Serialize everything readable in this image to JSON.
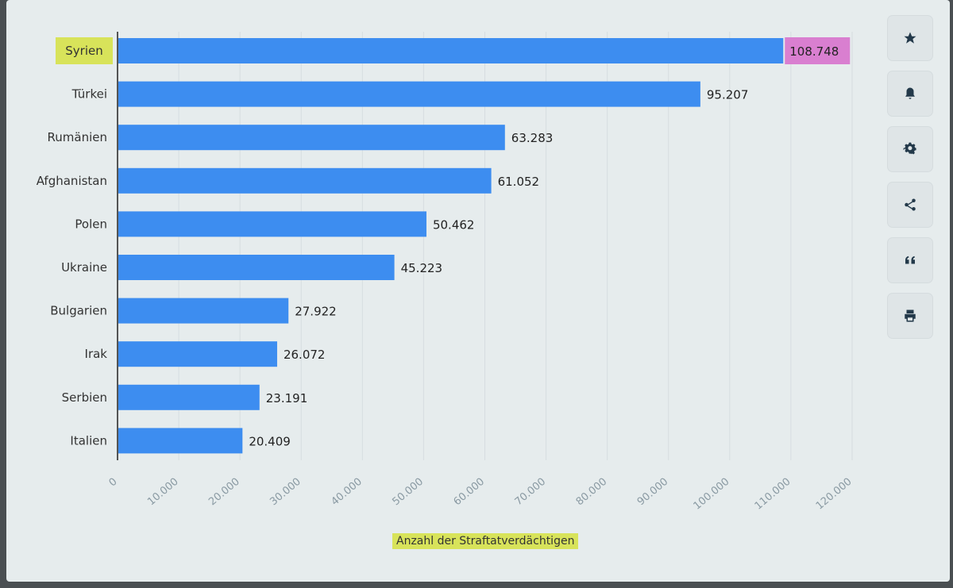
{
  "chart_data": {
    "type": "bar",
    "orientation": "horizontal",
    "categories": [
      "Syrien",
      "Türkei",
      "Rumänien",
      "Afghanistan",
      "Polen",
      "Ukraine",
      "Bulgarien",
      "Irak",
      "Serbien",
      "Italien"
    ],
    "values": [
      108748,
      95207,
      63283,
      61052,
      50462,
      45223,
      27922,
      26072,
      23191,
      20409
    ],
    "value_labels": [
      "108.748",
      "95.207",
      "63.283",
      "61.052",
      "50.462",
      "45.223",
      "27.922",
      "26.072",
      "23.191",
      "20.409"
    ],
    "xlabel": "Anzahl der Straftatverdächtigen",
    "xlim": [
      0,
      120000
    ],
    "xticks": [
      0,
      10000,
      20000,
      30000,
      40000,
      50000,
      60000,
      70000,
      80000,
      90000,
      100000,
      110000,
      120000
    ],
    "xtick_labels": [
      "0",
      "10.000",
      "20.000",
      "30.000",
      "40.000",
      "50.000",
      "60.000",
      "70.000",
      "80.000",
      "90.000",
      "100.000",
      "110.000",
      "120.000"
    ],
    "grid": true,
    "highlights": {
      "category": "Syrien",
      "category_color": "#d8e35a",
      "value_color": "#d97fd0",
      "xlabel_color": "#d8e35a"
    },
    "bar_color": "#3d8df0"
  },
  "toolbar": {
    "buttons": [
      {
        "name": "star-icon"
      },
      {
        "name": "bell-icon"
      },
      {
        "name": "gear-icon"
      },
      {
        "name": "share-icon"
      },
      {
        "name": "quote-icon"
      },
      {
        "name": "print-icon"
      }
    ]
  }
}
